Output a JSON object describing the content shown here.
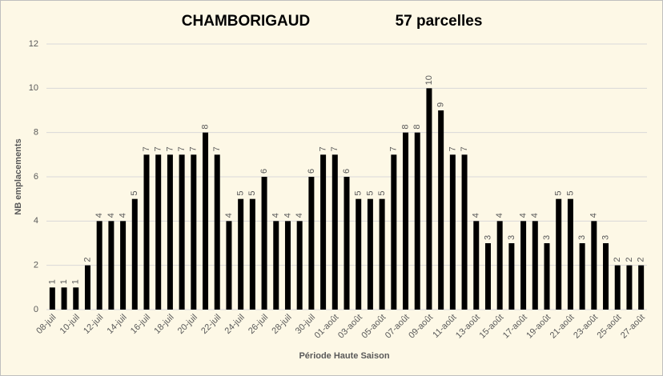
{
  "chart_data": {
    "type": "bar",
    "title": "CHAMBORIGAUD",
    "subtitle": "57 parcelles",
    "xlabel": "Période Haute Saison",
    "ylabel": "NB emplacements",
    "categories": [
      "08-juil",
      null,
      "10-juil",
      null,
      "12-juil",
      null,
      "14-juil",
      null,
      "16-juil",
      null,
      "18-juil",
      null,
      "20-juil",
      null,
      "22-juil",
      null,
      "24-juil",
      null,
      "26-juil",
      null,
      "28-juil",
      null,
      "30-juil",
      null,
      "01-août",
      null,
      "03-août",
      null,
      "05-août",
      null,
      "07-août",
      null,
      "09-août",
      null,
      "11-août",
      null,
      "13-août",
      null,
      "15-août",
      null,
      "17-août",
      null,
      "19-août",
      null,
      "21-août",
      null,
      "23-août",
      null,
      "25-août",
      null,
      "27-août"
    ],
    "values": [
      1,
      1,
      1,
      2,
      4,
      4,
      4,
      5,
      7,
      7,
      7,
      7,
      7,
      8,
      7,
      4,
      5,
      5,
      6,
      4,
      4,
      4,
      6,
      7,
      7,
      6,
      5,
      5,
      5,
      7,
      8,
      8,
      10,
      9,
      7,
      7,
      4,
      3,
      4,
      3,
      4,
      4,
      3,
      5,
      5,
      3,
      4,
      3,
      2,
      2,
      2
    ],
    "color": "#000000",
    "ylim": [
      0,
      12
    ],
    "yticks": [
      0,
      2,
      4,
      6,
      8,
      10,
      12
    ],
    "grid": true
  }
}
